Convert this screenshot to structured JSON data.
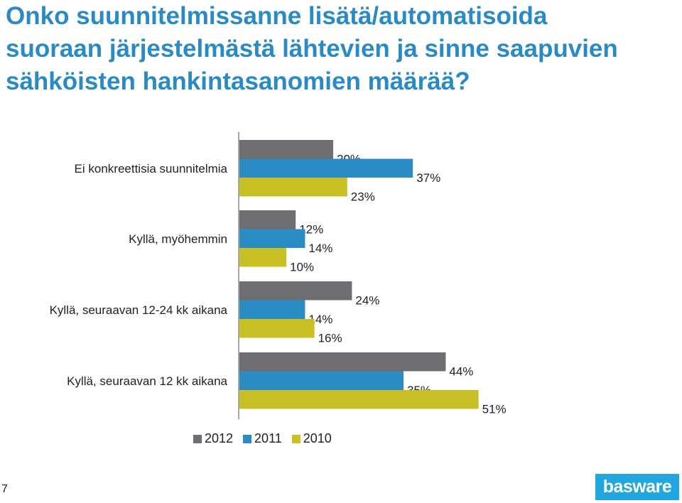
{
  "title": "Onko suunnitelmissanne lisätä/automatisoida suoraan järjestelmästä lähtevien ja sinne saapuvien sähköisten hankintasanomien määrää?",
  "page_number": "7",
  "logo_text": "basware",
  "colors": {
    "title": "#2a8bc4",
    "s2012": "#6d6e71",
    "s2011": "#2b8bc3",
    "s2010": "#c8c024",
    "logo": "#22a6e0"
  },
  "chart_data": {
    "type": "bar",
    "orientation": "horizontal",
    "title": "Onko suunnitelmissanne lisätä/automatisoida suoraan järjestelmästä lähtevien ja sinne saapuvien sähköisten hankintasanomien määrää?",
    "categories": [
      "Ei  konkreettisia suunnitelmia",
      "Kyllä, myöhemmin",
      "Kyllä, seuraavan 12-24 kk aikana",
      "Kyllä, seuraavan 12 kk aikana"
    ],
    "series": [
      {
        "name": "2012",
        "values": [
          20,
          12,
          24,
          44
        ]
      },
      {
        "name": "2011",
        "values": [
          37,
          14,
          14,
          35
        ]
      },
      {
        "name": "2010",
        "values": [
          23,
          10,
          16,
          51
        ]
      }
    ],
    "value_suffix": "%",
    "legend": "bottom",
    "grid": false
  }
}
